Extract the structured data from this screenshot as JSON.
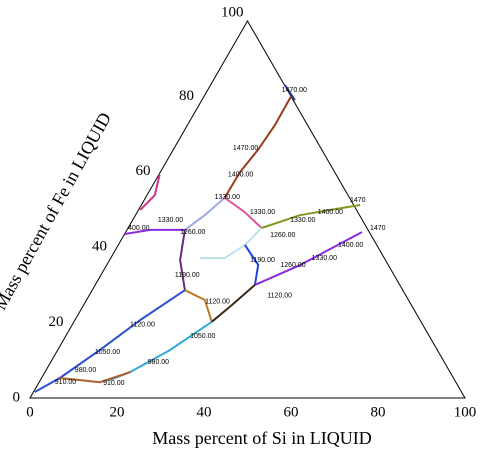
{
  "chart_data": {
    "type": "ternary",
    "xlabel": "Mass percent of Si in LIQUID",
    "ylabel": "Mass percent of Fe in LIQUID",
    "xlim": [
      0,
      100
    ],
    "ylim": [
      0,
      100
    ],
    "xticks": [
      0,
      20,
      40,
      60,
      80,
      100
    ],
    "yticks": [
      0,
      20,
      40,
      60,
      80,
      100
    ],
    "series": [
      {
        "color": "#9b3d1c",
        "x": [
          18.2,
          18.3,
          19.5,
          20.1,
          20.0
        ],
        "y": [
          53.1,
          59.9,
          65.8,
          72.4,
          80.4
        ]
      },
      {
        "color": "#e0559a",
        "x": [
          18.2,
          24.7,
          30.7
        ],
        "y": [
          53.1,
          49.3,
          45.1
        ]
      },
      {
        "color": "#7f9a1f",
        "x": [
          30.7,
          37.8,
          44.1,
          50.3
        ],
        "y": [
          45.1,
          48.5,
          49.9,
          51.2
        ]
      },
      {
        "color": "#9da7e8",
        "x": [
          18.2,
          15.9,
          13.3
        ],
        "y": [
          53.1,
          48.5,
          44.6
        ]
      },
      {
        "color": "#8a2be2",
        "x": [
          0,
          5.3,
          13.3
        ],
        "y": [
          43.5,
          44.6,
          44.6
        ]
      },
      {
        "color": "#b9e3ee",
        "x": [
          30.7,
          29.1,
          26.2,
          20.5
        ],
        "y": [
          45.1,
          40.6,
          37.1,
          37.1
        ]
      },
      {
        "color": "#8a2be2",
        "x": [
          36.7,
          44.5,
          54.3
        ],
        "y": [
          30.0,
          35.3,
          44.0
        ]
      },
      {
        "color": "#2244dd",
        "x": [
          29.1,
          34.8,
          36.7
        ],
        "y": [
          40.6,
          35.3,
          30.0
        ]
      },
      {
        "color": "#6a2a7a",
        "x": [
          13.3,
          16.2,
          21.3
        ],
        "y": [
          44.6,
          36.6,
          28.6
        ]
      },
      {
        "color": "#c07a20",
        "x": [
          21.3,
          27.2,
          31.7
        ],
        "y": [
          28.6,
          26.0,
          20.2
        ]
      },
      {
        "color": "#3a2a1a",
        "x": [
          36.7,
          34.1,
          31.7
        ],
        "y": [
          30.0,
          24.7,
          20.2
        ]
      },
      {
        "color": "#2ea8d8",
        "x": [
          31.7,
          25.8,
          19.6,
          16.0
        ],
        "y": [
          20.2,
          12.7,
          6.9,
          4.8
        ]
      },
      {
        "color": "#2a4fd0",
        "x": [
          21.3,
          15.0,
          9.7,
          4.2,
          0.3
        ],
        "y": [
          28.6,
          20.7,
          12.7,
          5.3,
          1.6
        ]
      },
      {
        "color": "#b0602a",
        "x": [
          4.2,
          14.0,
          19.6
        ],
        "y": [
          5.3,
          4.2,
          6.9
        ]
      },
      {
        "color": "#d0308a",
        "x": [
          0.4,
          1.8,
          0.2
        ],
        "y": [
          49.9,
          53.8,
          59.2
        ]
      },
      {
        "color": "#2a3aa0",
        "x": [
          17.1,
          21.4
        ],
        "y": [
          83.0,
          79.0
        ]
      }
    ],
    "annotations": [
      {
        "text": "1470.00",
        "x": 17.0,
        "y": 81.7
      },
      {
        "text": "1470.00",
        "x": 13.5,
        "y": 66.3
      },
      {
        "text": "1400.00",
        "x": 15.9,
        "y": 59.2
      },
      {
        "text": "1330.00",
        "x": 15.8,
        "y": 53.3
      },
      {
        "text": "1330.00",
        "x": 25.9,
        "y": 49.3
      },
      {
        "text": "1400.00",
        "x": 41.5,
        "y": 49.3
      },
      {
        "text": "1330.00",
        "x": 36.2,
        "y": 47.2
      },
      {
        "text": "1260.00",
        "x": 33.6,
        "y": 43.2
      },
      {
        "text": "1400.00",
        "x": 50.5,
        "y": 40.6
      },
      {
        "text": "1330.00",
        "x": 46.2,
        "y": 37.1
      },
      {
        "text": "1260.00",
        "x": 39.9,
        "y": 35.3
      },
      {
        "text": "1190.00",
        "x": 32.3,
        "y": 36.6
      },
      {
        "text": "1260.00",
        "x": 12.5,
        "y": 44.0
      },
      {
        "text": "1330.00",
        "x": 5.8,
        "y": 47.2
      },
      {
        "text": "400.00",
        "x": 0,
        "y": 45.1
      },
      {
        "text": "1190.00",
        "x": 17.0,
        "y": 32.6
      },
      {
        "text": "1120.00",
        "x": 27.5,
        "y": 25.5
      },
      {
        "text": "1120.00",
        "x": 41.0,
        "y": 27.1
      },
      {
        "text": "1120.00",
        "x": 13.3,
        "y": 19.4
      },
      {
        "text": "1050.00",
        "x": 28.6,
        "y": 16.4
      },
      {
        "text": "1050.00",
        "x": 8.8,
        "y": 12.2
      },
      {
        "text": "980.00",
        "x": 22.3,
        "y": 9.5
      },
      {
        "text": "910.00",
        "x": 14.8,
        "y": 4.0
      },
      {
        "text": "980.00",
        "x": 6.6,
        "y": 7.4
      },
      {
        "text": "910.00",
        "x": 3.6,
        "y": 4.2
      },
      {
        "text": "1470",
        "x": 47.3,
        "y": 52.5
      },
      {
        "text": "1470",
        "x": 55.6,
        "y": 45.1
      }
    ]
  }
}
